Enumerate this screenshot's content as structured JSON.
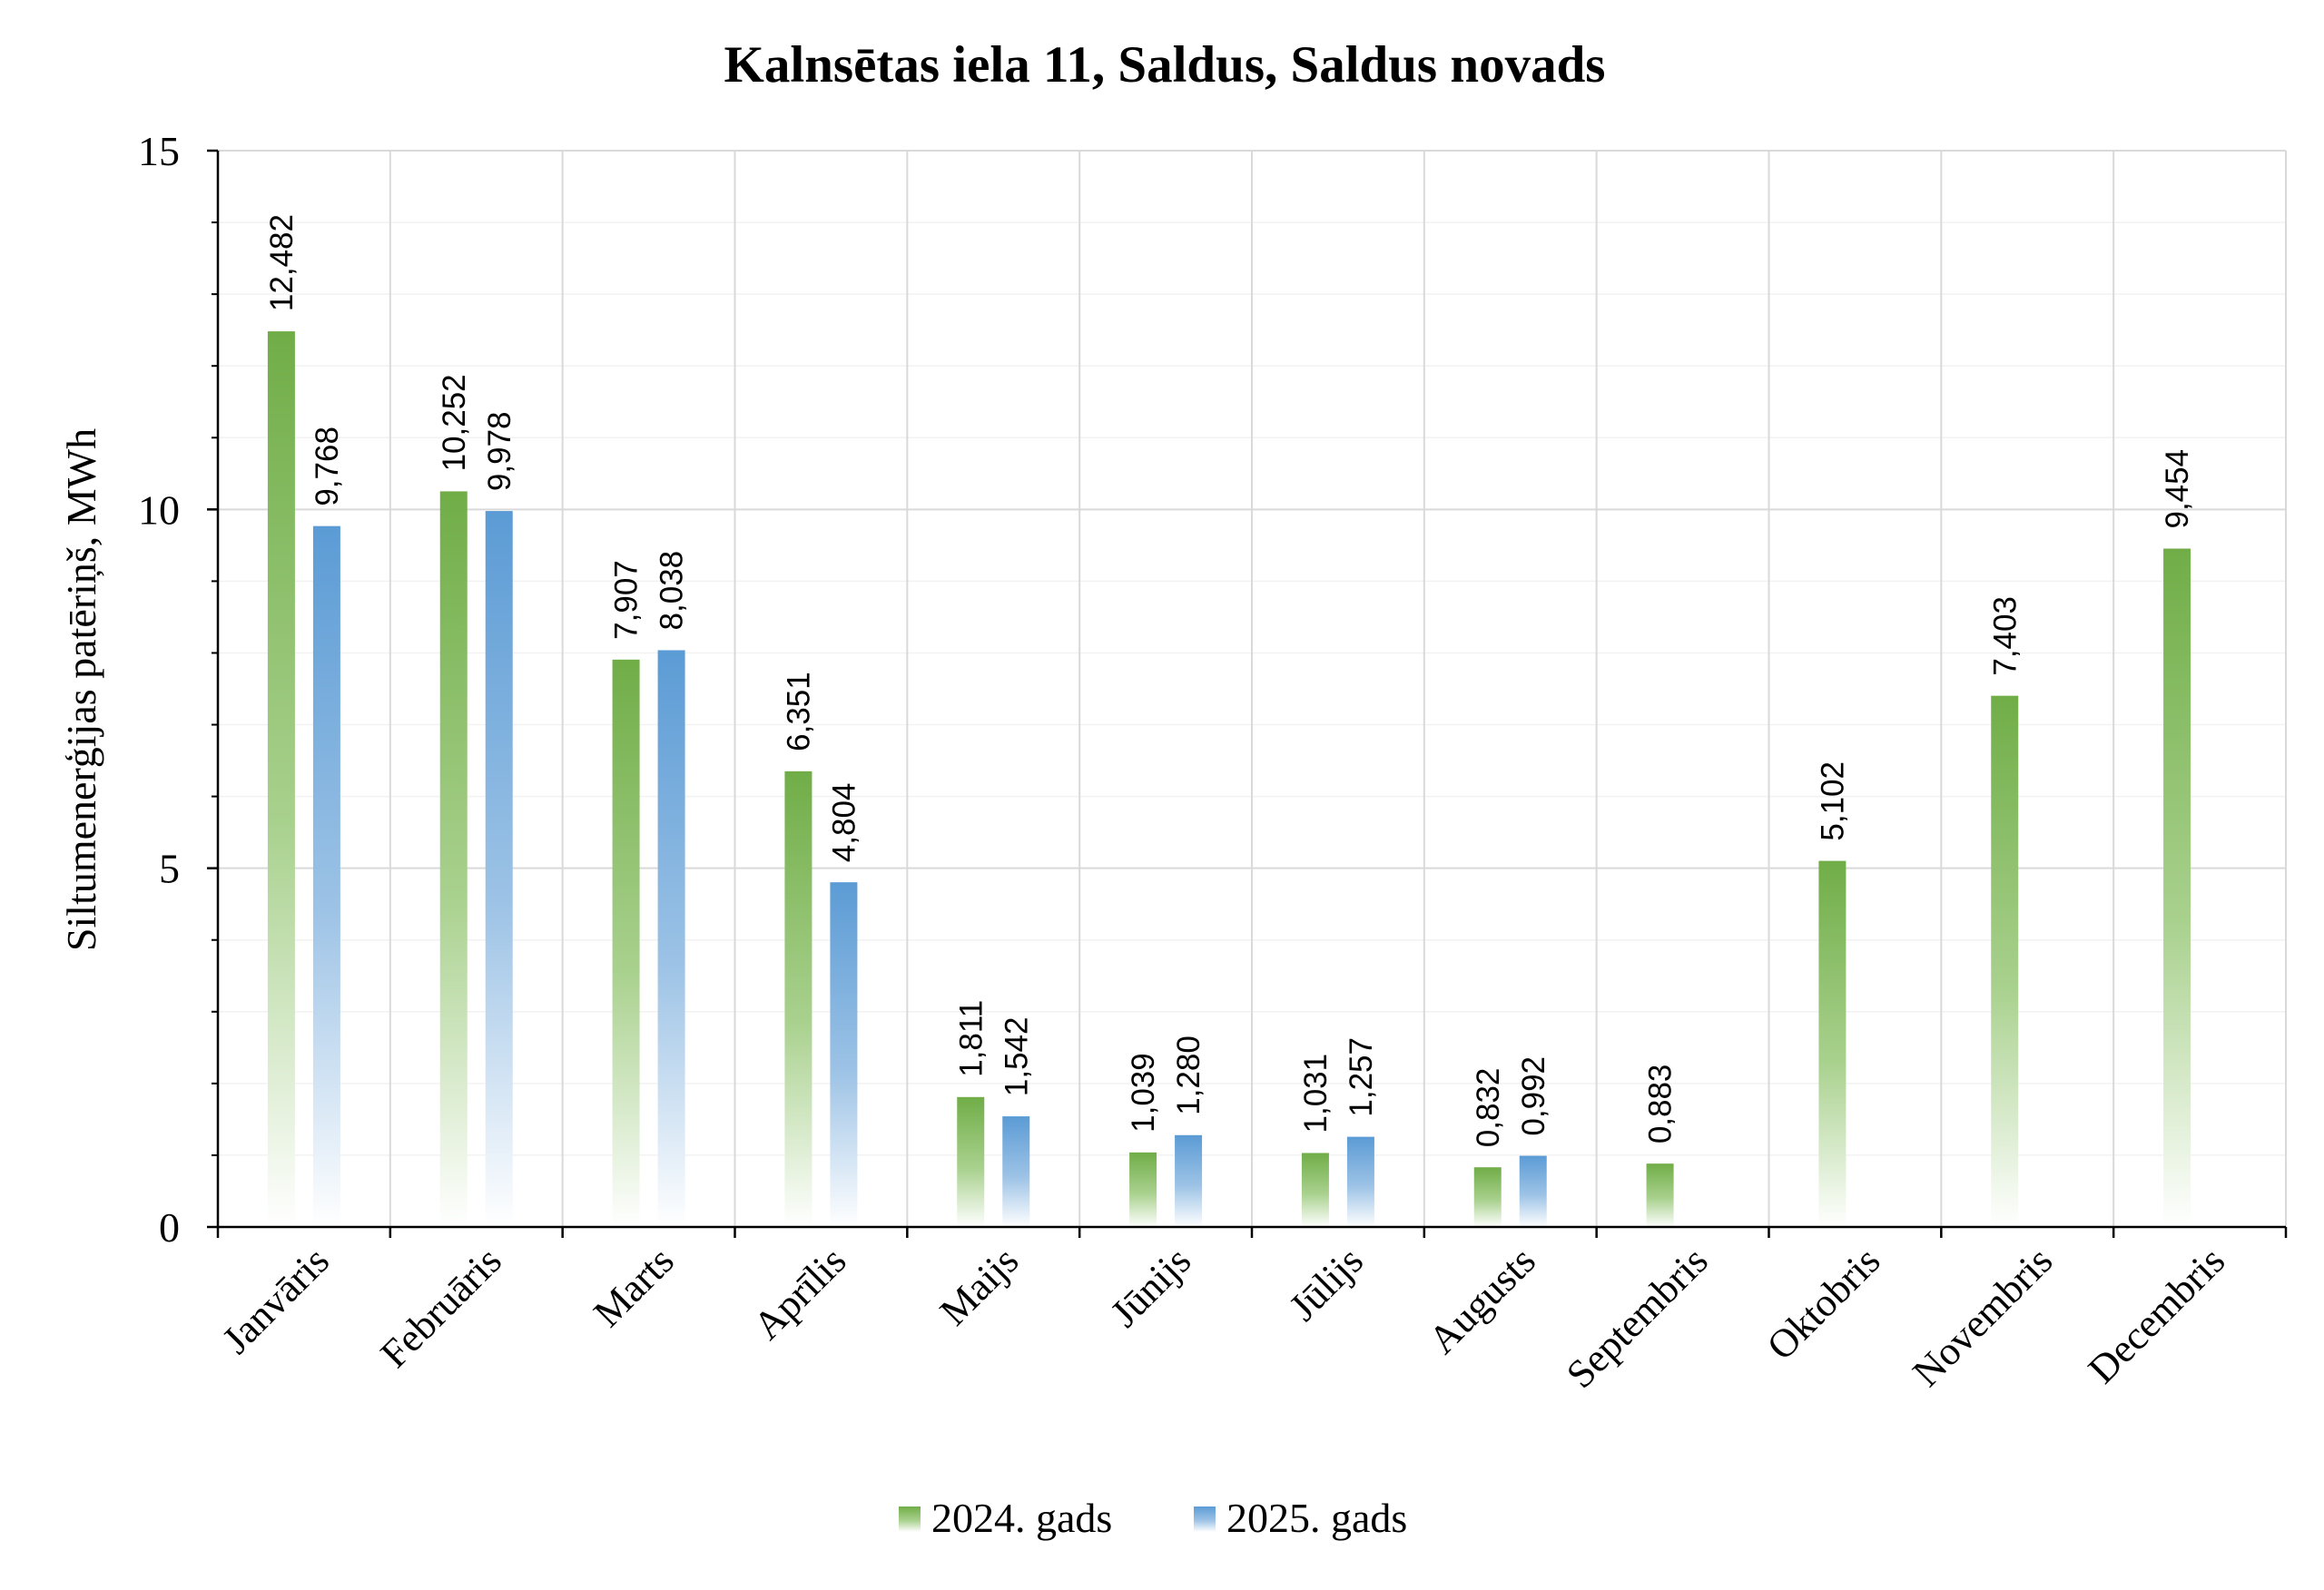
{
  "chart_data": {
    "type": "bar",
    "title": "Kalnsētas iela 11, Saldus, Saldus novads",
    "xlabel": "",
    "ylabel": "Siltumenerģijas patēriņš, MWh",
    "ylim": [
      0,
      15
    ],
    "yticks": [
      "0",
      "5",
      "10",
      "15"
    ],
    "grid": true,
    "legend_position": "bottom",
    "categories": [
      "Janvāris",
      "Februāris",
      "Marts",
      "Aprīlis",
      "Maijs",
      "Jūnijs",
      "Jūlijs",
      "Augusts",
      "Septembris",
      "Oktobris",
      "Novembris",
      "Decembris"
    ],
    "series": [
      {
        "name": "2024. gads",
        "color": "#70ad47",
        "values": [
          12.482,
          10.252,
          7.907,
          6.351,
          1.811,
          1.039,
          1.031,
          0.832,
          0.883,
          5.102,
          7.403,
          9.454
        ],
        "labels": [
          "12,482",
          "10,252",
          "7,907",
          "6,351",
          "1,811",
          "1,039",
          "1,031",
          "0,832",
          "0,883",
          "5,102",
          "7,403",
          "9,454"
        ]
      },
      {
        "name": "2025. gads",
        "color": "#5b9bd5",
        "values": [
          9.768,
          9.978,
          8.038,
          4.804,
          1.542,
          1.28,
          1.257,
          0.992,
          null,
          null,
          null,
          null
        ],
        "labels": [
          "9,768",
          "9,978",
          "8,038",
          "4,804",
          "1,542",
          "1,280",
          "1,257",
          "0,992",
          "",
          "",
          "",
          ""
        ]
      }
    ]
  }
}
